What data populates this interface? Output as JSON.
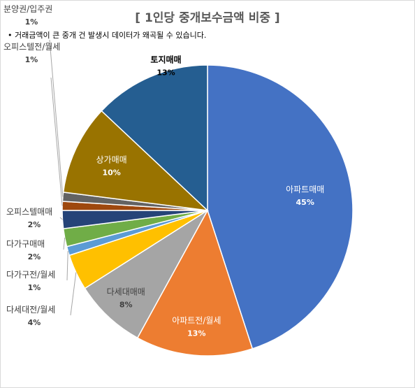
{
  "chart_data": {
    "type": "pie",
    "title": "[ 1인당 중개보수금액 비중 ]",
    "note": "• 거래금액이 큰 중개 건 발생시 데이터가 왜곡될 수 있습니다.",
    "slices": [
      {
        "name": "아파트매매",
        "value": 45,
        "label": "45%",
        "color": "#4472C4"
      },
      {
        "name": "아파트전/월세",
        "value": 13,
        "label": "13%",
        "color": "#ED7D31"
      },
      {
        "name": "다세대매매",
        "value": 8,
        "label": "8%",
        "color": "#A5A5A5"
      },
      {
        "name": "다세대전/월세",
        "value": 4,
        "label": "4%",
        "color": "#FFC000"
      },
      {
        "name": "다가구전/월세",
        "value": 1,
        "label": "1%",
        "color": "#5B9BD5"
      },
      {
        "name": "다가구매매",
        "value": 2,
        "label": "2%",
        "color": "#70AD47"
      },
      {
        "name": "오피스텔매매",
        "value": 2,
        "label": "2%",
        "color": "#264478"
      },
      {
        "name": "오피스텔전/월세",
        "value": 1,
        "label": "1%",
        "color": "#9E480E"
      },
      {
        "name": "분양권/입주권",
        "value": 1,
        "label": "1%",
        "color": "#636363"
      },
      {
        "name": "상가매매",
        "value": 10,
        "label": "10%",
        "color": "#997300"
      },
      {
        "name": "토지매매",
        "value": 13,
        "label": "13%",
        "color": "#255E91"
      }
    ]
  }
}
